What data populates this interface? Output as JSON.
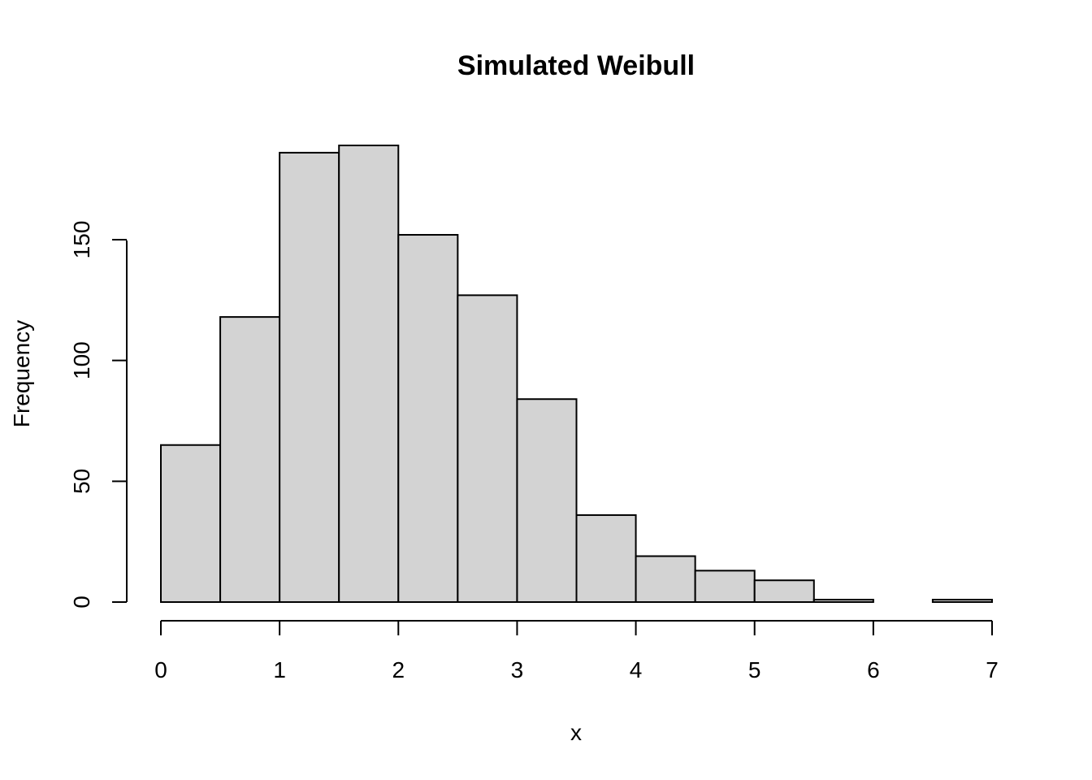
{
  "chart_data": {
    "type": "bar",
    "title": "Simulated Weibull",
    "xlabel": "x",
    "ylabel": "Frequency",
    "bin_edges": [
      0,
      0.5,
      1,
      1.5,
      2,
      2.5,
      3,
      3.5,
      4,
      4.5,
      5,
      5.5,
      6,
      6.5,
      7
    ],
    "values": [
      65,
      118,
      186,
      189,
      152,
      127,
      84,
      36,
      19,
      13,
      9,
      1,
      0,
      1
    ],
    "xlim": [
      0,
      7
    ],
    "ylim": [
      0,
      189
    ],
    "x_ticks": [
      "0",
      "1",
      "2",
      "3",
      "4",
      "5",
      "6",
      "7"
    ],
    "y_ticks": [
      "0",
      "50",
      "100",
      "150"
    ],
    "bar_color": "#d3d3d3",
    "border_color": "#000000",
    "grid": false
  }
}
